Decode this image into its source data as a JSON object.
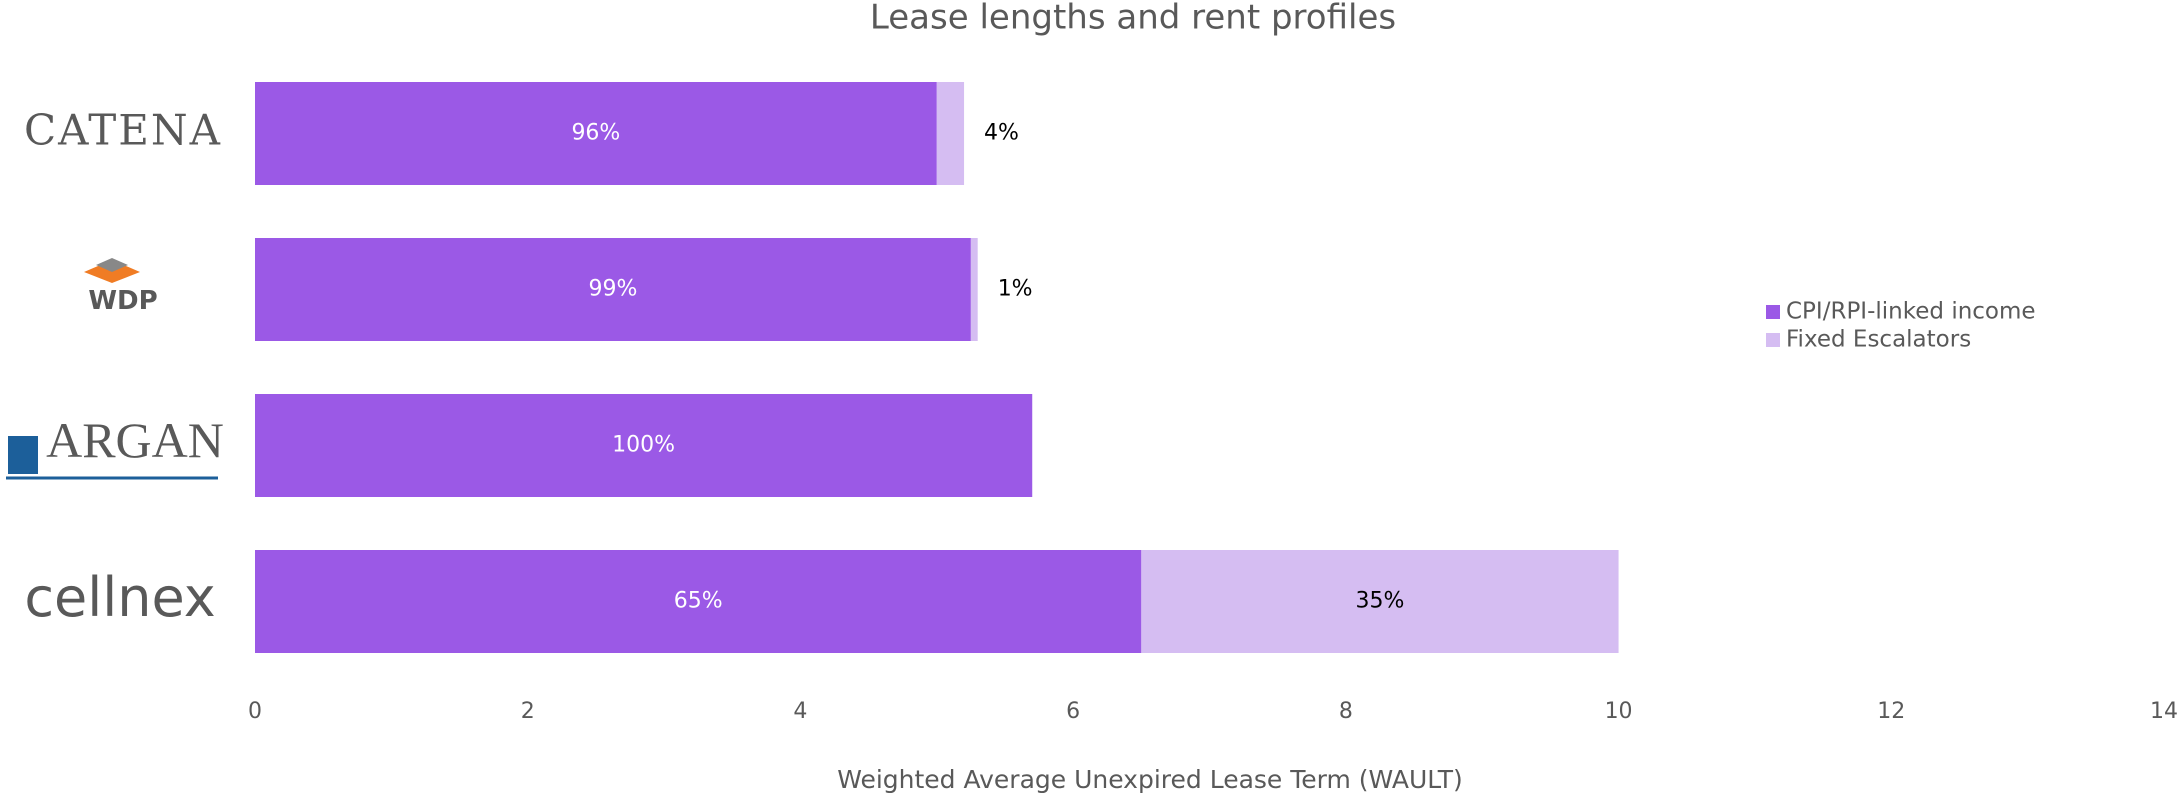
{
  "chart_data": {
    "type": "stacked-bar-horizontal",
    "title": "Lease lengths and rent profiles",
    "x_label": "Weighted Average Unexpired Lease Term (WAULT)",
    "categories": [
      "CATENA",
      "WDP",
      "ARGAN",
      "cellnex"
    ],
    "series": [
      {
        "name": "CPI/RPI-linked income",
        "color": "#9b59e6",
        "values": [
          5.0,
          5.25,
          5.7,
          6.5
        ],
        "segment_labels": [
          "96%",
          "99%",
          "100%",
          "65%"
        ]
      },
      {
        "name": "Fixed Escalators",
        "color": "#d5bdf2",
        "values": [
          0.2,
          0.05,
          0,
          3.5
        ],
        "segment_labels": [
          "4%",
          "1%",
          null,
          "35%"
        ]
      }
    ],
    "xlim": [
      0,
      14
    ],
    "xticks": [
      0,
      2,
      4,
      6,
      8,
      10,
      12,
      14
    ],
    "legend": "right"
  }
}
